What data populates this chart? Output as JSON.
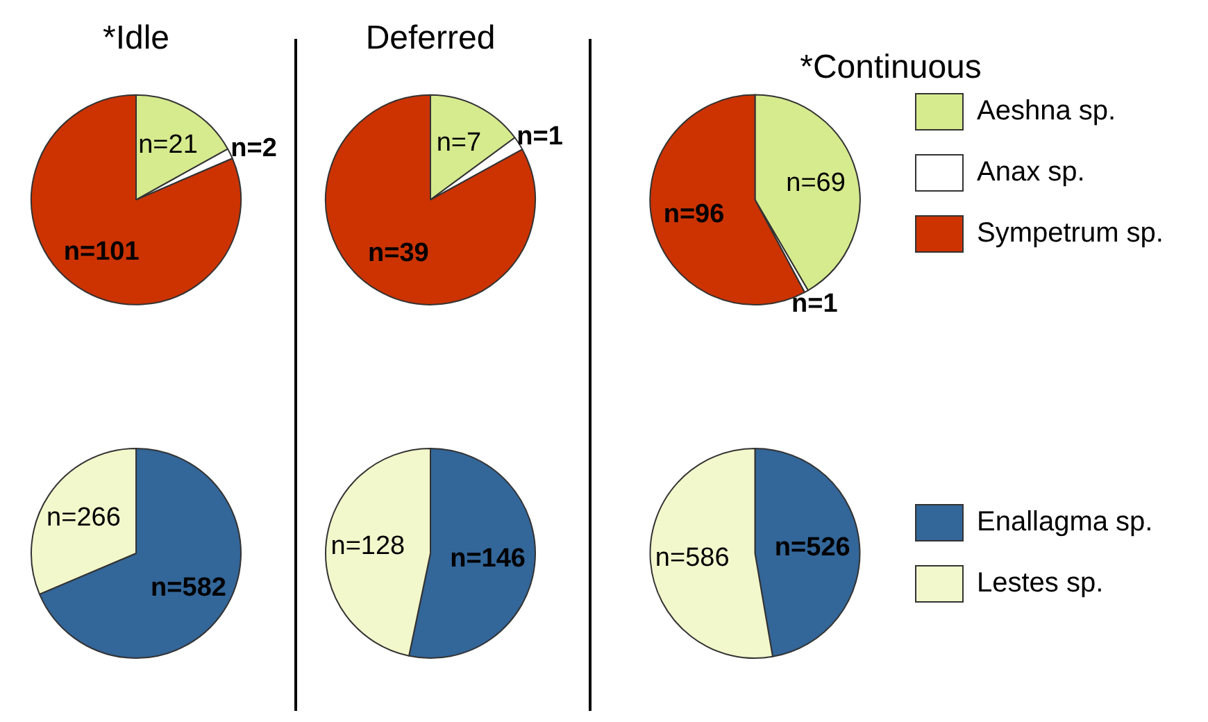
{
  "chart_data": [
    {
      "type": "pie",
      "title": "*Idle",
      "categories": [
        null,
        null,
        null
      ],
      "values": [
        21,
        2,
        101
      ],
      "colors": [
        "#d6ea8e",
        "#ffffff",
        "#cc3300"
      ],
      "value_labels": [
        "n=21",
        "n=2",
        "n=101"
      ]
    },
    {
      "type": "pie",
      "title": "Deferred",
      "categories": [
        null,
        null,
        null
      ],
      "values": [
        7,
        1,
        39
      ],
      "colors": [
        "#d6ea8e",
        "#ffffff",
        "#cc3300"
      ],
      "value_labels": [
        "n=7",
        "n=1",
        "n=39"
      ]
    },
    {
      "type": "pie",
      "title": "*Continuous",
      "categories": [
        "Aeshna sp.",
        "Anax sp.",
        "Sympetrum sp."
      ],
      "values": [
        69,
        1,
        96
      ],
      "colors": [
        "#d6ea8e",
        "#ffffff",
        "#cc3300"
      ],
      "value_labels": [
        "n=69",
        "n=1",
        "n=96"
      ],
      "legend": "right"
    },
    {
      "type": "pie",
      "categories": [
        null,
        null
      ],
      "values": [
        582,
        266
      ],
      "colors": [
        "#336699",
        "#f3f8cc"
      ],
      "value_labels": [
        "n=582",
        "n=266"
      ]
    },
    {
      "type": "pie",
      "categories": [
        null,
        null
      ],
      "values": [
        146,
        128
      ],
      "colors": [
        "#336699",
        "#f3f8cc"
      ],
      "value_labels": [
        "n=146",
        "n=128"
      ]
    },
    {
      "type": "pie",
      "categories": [
        "Enallagma sp.",
        "Lestes sp."
      ],
      "values": [
        526,
        586
      ],
      "colors": [
        "#336699",
        "#f3f8cc"
      ],
      "value_labels": [
        "n=526",
        "n=586"
      ],
      "legend": "right"
    }
  ]
}
